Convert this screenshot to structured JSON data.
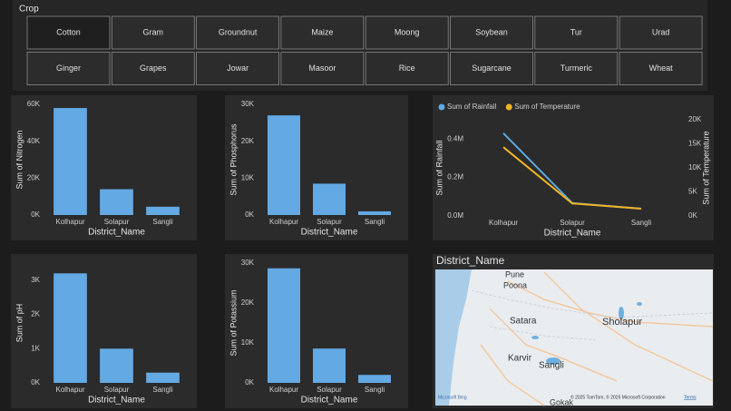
{
  "slicer": {
    "title": "Crop",
    "selected_index": 0,
    "items": [
      "Cotton",
      "Gram",
      "Groundnut",
      "Maize",
      "Moong",
      "Soybean",
      "Tur",
      "Urad",
      "Ginger",
      "Grapes",
      "Jowar",
      "Masoor",
      "Rice",
      "Sugarcane",
      "Turmeric",
      "Wheat"
    ]
  },
  "chart_data": [
    {
      "type": "bar",
      "y_label": "Sum of Nitrogen",
      "x_label": "District_Name",
      "categories": [
        "Kolhapur",
        "Solapur",
        "Sangli"
      ],
      "values": [
        58000,
        14000,
        4500
      ],
      "color": "#63a9e3",
      "ylim": [
        0,
        60000
      ],
      "yticks": [
        {
          "value": 0,
          "label": "0K"
        },
        {
          "value": 20000,
          "label": "20K"
        },
        {
          "value": 40000,
          "label": "40K"
        },
        {
          "value": 60000,
          "label": "60K"
        }
      ]
    },
    {
      "type": "bar",
      "y_label": "Sum of Phosphorus",
      "x_label": "District_Name",
      "categories": [
        "Kolhapur",
        "Solapur",
        "Sangli"
      ],
      "values": [
        27000,
        8500,
        1000
      ],
      "color": "#63a9e3",
      "ylim": [
        0,
        30000
      ],
      "yticks": [
        {
          "value": 0,
          "label": "0K"
        },
        {
          "value": 10000,
          "label": "10K"
        },
        {
          "value": 20000,
          "label": "20K"
        },
        {
          "value": 30000,
          "label": "30K"
        }
      ]
    },
    {
      "type": "line",
      "y_label": "Sum of Rainfall",
      "y2_label": "Sum of Temperature",
      "x_label": "District_Name",
      "categories": [
        "Kolhapur",
        "Solapur",
        "Sangli"
      ],
      "legend": "top-left",
      "series": [
        {
          "name": "Sum of Rainfall",
          "color": "#5fa8e0",
          "values": [
            430000,
            67000,
            38000
          ]
        },
        {
          "name": "Sum of Temperature",
          "color": "#f0b323",
          "values": [
            14300,
            2600,
            1500
          ],
          "axis": "y2"
        }
      ],
      "ylim": [
        0,
        500000
      ],
      "yticks": [
        {
          "value": 0,
          "label": "0.0M"
        },
        {
          "value": 200000,
          "label": "0.2M"
        },
        {
          "value": 400000,
          "label": "0.4M"
        }
      ],
      "y2lim": [
        0,
        20000
      ],
      "y2ticks": [
        {
          "value": 0,
          "label": "0K"
        },
        {
          "value": 5000,
          "label": "5K"
        },
        {
          "value": 10000,
          "label": "10K"
        },
        {
          "value": 15000,
          "label": "15K"
        },
        {
          "value": 20000,
          "label": "20K"
        }
      ]
    },
    {
      "type": "bar",
      "y_label": "Sum of pH",
      "x_label": "District_Name",
      "categories": [
        "Kolhapur",
        "Solapur",
        "Sangli"
      ],
      "values": [
        3200,
        1000,
        300
      ],
      "color": "#63a9e3",
      "ylim": [
        0,
        3500
      ],
      "yticks": [
        {
          "value": 0,
          "label": "0K"
        },
        {
          "value": 1000,
          "label": "1K"
        },
        {
          "value": 2000,
          "label": "2K"
        },
        {
          "value": 3000,
          "label": "3K"
        }
      ]
    },
    {
      "type": "bar",
      "y_label": "Sum of Potassium",
      "x_label": "District_Name",
      "categories": [
        "Kolhapur",
        "Solapur",
        "Sangli"
      ],
      "values": [
        28700,
        8600,
        2000
      ],
      "color": "#63a9e3",
      "ylim": [
        0,
        30000
      ],
      "yticks": [
        {
          "value": 0,
          "label": "0K"
        },
        {
          "value": 10000,
          "label": "10K"
        },
        {
          "value": 20000,
          "label": "20K"
        },
        {
          "value": 30000,
          "label": "30K"
        }
      ]
    }
  ],
  "map": {
    "title": "District_Name",
    "places": [
      "Pune",
      "Poona",
      "Satara",
      "Sholapur",
      "Karvir",
      "Sangli",
      "Gokak"
    ],
    "attribution": "© 2025 TomTom, © 2025 Microsoft Corporation",
    "terms": "Terms",
    "provider": "Microsoft Bing"
  }
}
